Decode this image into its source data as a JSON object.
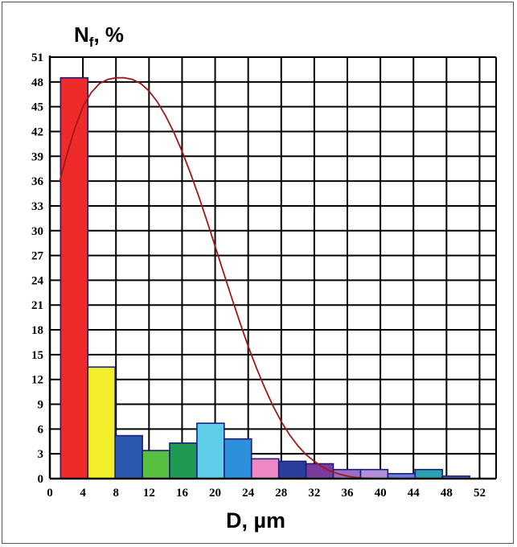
{
  "chart_data": {
    "type": "bar",
    "ylabel_main": "N",
    "ylabel_sub": "f",
    "ylabel_rest": ", %",
    "xlabel": "D, µm",
    "xlim": [
      0,
      54
    ],
    "ylim": [
      0,
      51
    ],
    "x_ticks": [
      0,
      4,
      8,
      12,
      16,
      20,
      24,
      28,
      32,
      36,
      40,
      44,
      48,
      52
    ],
    "y_ticks": [
      0,
      3,
      6,
      9,
      12,
      15,
      18,
      21,
      24,
      27,
      30,
      33,
      36,
      39,
      42,
      45,
      48,
      51
    ],
    "grid": true,
    "bin_width": 3.3,
    "bars": [
      {
        "center": 2.95,
        "value": 48.5,
        "color": "#ee2a2a"
      },
      {
        "center": 6.25,
        "value": 13.5,
        "color": "#f2ee2a"
      },
      {
        "center": 9.55,
        "value": 5.2,
        "color": "#2a57b0"
      },
      {
        "center": 12.85,
        "value": 3.4,
        "color": "#58c040"
      },
      {
        "center": 16.15,
        "value": 4.3,
        "color": "#1e9a52"
      },
      {
        "center": 19.45,
        "value": 6.7,
        "color": "#5ecde8"
      },
      {
        "center": 22.75,
        "value": 4.8,
        "color": "#2b8fdc"
      },
      {
        "center": 26.05,
        "value": 2.4,
        "color": "#ee88c4"
      },
      {
        "center": 29.35,
        "value": 2.1,
        "color": "#2a3e9a"
      },
      {
        "center": 32.65,
        "value": 1.8,
        "color": "#7a3a9e"
      },
      {
        "center": 35.95,
        "value": 1.1,
        "color": "#9a6ec4"
      },
      {
        "center": 39.25,
        "value": 1.1,
        "color": "#b08ed8"
      },
      {
        "center": 42.55,
        "value": 0.6,
        "color": "#6a7ee0"
      },
      {
        "center": 45.85,
        "value": 1.1,
        "color": "#2aa0b0"
      },
      {
        "center": 49.15,
        "value": 0.3,
        "color": "#4a6ad0"
      }
    ],
    "fit_curve": {
      "color": "#a01818",
      "points": [
        [
          1.2,
          36
        ],
        [
          2,
          39
        ],
        [
          3,
          42.3
        ],
        [
          4,
          45
        ],
        [
          5,
          46.7
        ],
        [
          6,
          47.8
        ],
        [
          7,
          48.3
        ],
        [
          8,
          48.5
        ],
        [
          9,
          48.5
        ],
        [
          10,
          48.3
        ],
        [
          11,
          47.8
        ],
        [
          12,
          46.9
        ],
        [
          13,
          45.6
        ],
        [
          14,
          43.9
        ],
        [
          15,
          41.9
        ],
        [
          16,
          39.6
        ],
        [
          17,
          37.0
        ],
        [
          18,
          34.2
        ],
        [
          19,
          31.2
        ],
        [
          20,
          28.1
        ],
        [
          21,
          25.0
        ],
        [
          22,
          21.9
        ],
        [
          23,
          18.9
        ],
        [
          24,
          16.0
        ],
        [
          25,
          13.4
        ],
        [
          26,
          11.0
        ],
        [
          27,
          8.8
        ],
        [
          28,
          6.9
        ],
        [
          29,
          5.3
        ],
        [
          30,
          4.0
        ],
        [
          31,
          2.9
        ],
        [
          32,
          2.1
        ],
        [
          33,
          1.4
        ],
        [
          34,
          0.9
        ],
        [
          35,
          0.55
        ],
        [
          36,
          0.3
        ],
        [
          37,
          0.15
        ],
        [
          38,
          0.06
        ],
        [
          39,
          0.02
        ],
        [
          40,
          0
        ],
        [
          54,
          0
        ]
      ]
    }
  }
}
